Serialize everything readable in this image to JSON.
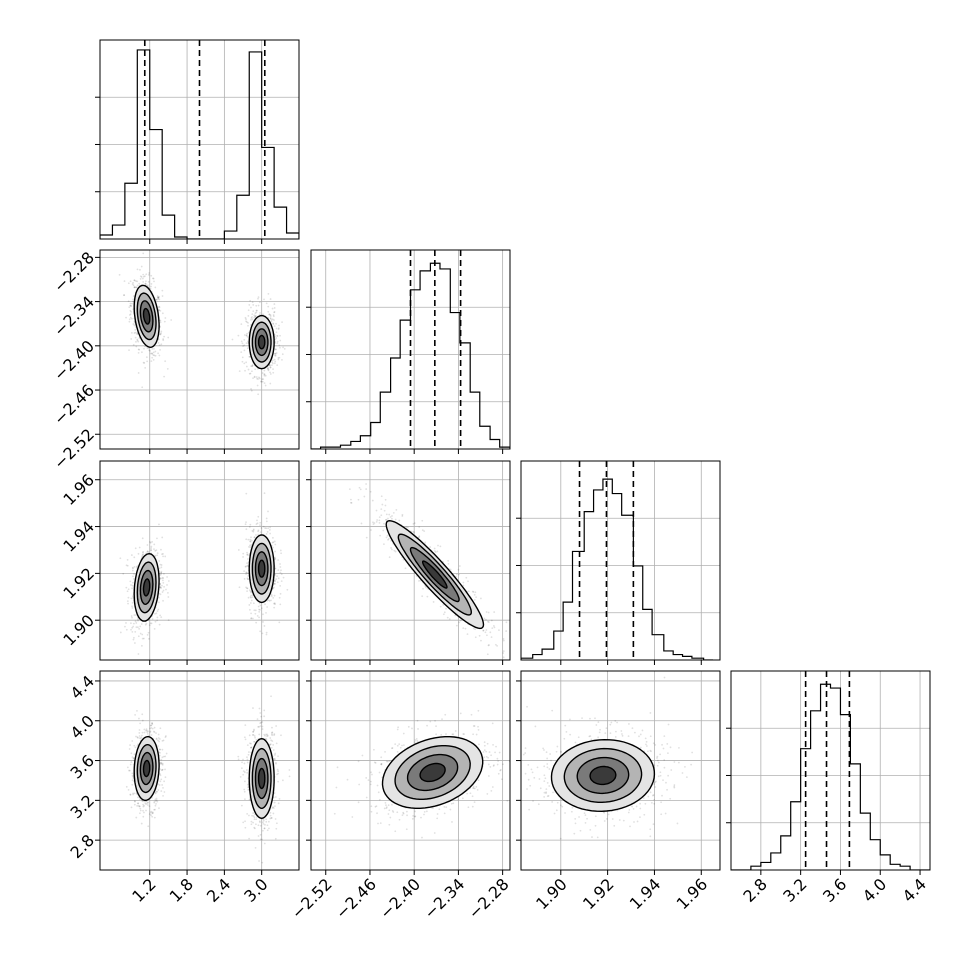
{
  "chart_data": {
    "type": "corner",
    "n_params": 4,
    "params": [
      {
        "range": [
          0.4,
          3.6
        ],
        "ticks": [
          1.2,
          1.8,
          2.4,
          3.0
        ],
        "tick_labels": [
          "1.2",
          "1.8",
          "2.4",
          "3.0"
        ],
        "quantiles": [
          1.12,
          2.0,
          3.05
        ],
        "hist": {
          "edges": [
            0.4,
            0.6,
            0.8,
            1.0,
            1.2,
            1.4,
            1.6,
            1.8,
            2.0,
            2.2,
            2.4,
            2.6,
            2.8,
            3.0,
            3.2,
            3.4,
            3.6
          ],
          "counts": [
            0.02,
            0.07,
            0.28,
            0.95,
            0.55,
            0.12,
            0.01,
            0,
            0,
            0,
            0.04,
            0.22,
            0.94,
            0.46,
            0.16,
            0.03
          ],
          "ylim": [
            0,
            1.0
          ]
        }
      },
      {
        "range": [
          -2.54,
          -2.27
        ],
        "ticks": [
          -2.52,
          -2.46,
          -2.4,
          -2.34,
          -2.28
        ],
        "tick_labels": [
          "−2.52",
          "−2.46",
          "−2.40",
          "−2.34",
          "−2.28"
        ],
        "quantiles": [
          -2.405,
          -2.372,
          -2.337
        ],
        "hist": {
          "edges": [
            -2.54,
            -2.527,
            -2.513,
            -2.5,
            -2.486,
            -2.473,
            -2.459,
            -2.446,
            -2.432,
            -2.419,
            -2.405,
            -2.392,
            -2.378,
            -2.365,
            -2.351,
            -2.338,
            -2.324,
            -2.311,
            -2.297,
            -2.284,
            -2.27
          ],
          "counts": [
            0,
            0.01,
            0.01,
            0.02,
            0.04,
            0.07,
            0.14,
            0.3,
            0.48,
            0.68,
            0.84,
            0.94,
            0.98,
            0.95,
            0.72,
            0.56,
            0.3,
            0.12,
            0.05,
            0.01
          ],
          "ylim": [
            0,
            1.05
          ]
        }
      },
      {
        "range": [
          1.883,
          1.968
        ],
        "ticks": [
          1.9,
          1.92,
          1.94,
          1.96
        ],
        "tick_labels": [
          "1.90",
          "1.92",
          "1.94",
          "1.96"
        ],
        "quantiles": [
          1.908,
          1.9195,
          1.931
        ],
        "hist": {
          "edges": [
            1.883,
            1.888,
            1.892,
            1.897,
            1.901,
            1.905,
            1.91,
            1.914,
            1.918,
            1.922,
            1.926,
            1.931,
            1.935,
            1.939,
            1.944,
            1.948,
            1.952,
            1.956,
            1.961,
            1.965
          ],
          "counts": [
            0.01,
            0.03,
            0.06,
            0.16,
            0.32,
            0.6,
            0.82,
            0.94,
            1.0,
            0.92,
            0.8,
            0.52,
            0.28,
            0.14,
            0.05,
            0.03,
            0.02,
            0.01,
            0
          ],
          "ylim": [
            0,
            1.1
          ]
        }
      },
      {
        "range": [
          2.5,
          4.5
        ],
        "ticks": [
          2.8,
          3.2,
          3.6,
          4.0,
          4.4
        ],
        "tick_labels": [
          "2.8",
          "3.2",
          "3.6",
          "4.0",
          "4.4"
        ],
        "quantiles": [
          3.25,
          3.46,
          3.69
        ],
        "hist": {
          "edges": [
            2.5,
            2.6,
            2.7,
            2.8,
            2.9,
            3.0,
            3.1,
            3.2,
            3.3,
            3.4,
            3.5,
            3.6,
            3.7,
            3.8,
            3.9,
            4.0,
            4.1,
            4.2,
            4.3,
            4.4,
            4.5
          ],
          "counts": [
            0,
            0,
            0.02,
            0.04,
            0.09,
            0.18,
            0.36,
            0.64,
            0.84,
            0.98,
            0.96,
            0.82,
            0.56,
            0.3,
            0.16,
            0.08,
            0.03,
            0.02,
            0,
            0
          ],
          "ylim": [
            0,
            1.05
          ]
        }
      }
    ],
    "joint": [
      {
        "row": 1,
        "col": 0,
        "modes": [
          {
            "mean": [
              1.15,
              -2.36
            ],
            "sd": [
              0.1,
              0.021
            ],
            "rho": -0.3
          },
          {
            "mean": [
              3.0,
              -2.395
            ],
            "sd": [
              0.1,
              0.018
            ],
            "rho": 0.0
          }
        ]
      },
      {
        "row": 2,
        "col": 0,
        "modes": [
          {
            "mean": [
              1.15,
              1.914
            ],
            "sd": [
              0.1,
              0.0072
            ],
            "rho": 0.2
          },
          {
            "mean": [
              3.0,
              1.922
            ],
            "sd": [
              0.1,
              0.0072
            ],
            "rho": 0.0
          }
        ]
      },
      {
        "row": 2,
        "col": 1,
        "modes": [
          {
            "mean": [
              -2.372,
              1.9195
            ],
            "sd": [
              0.033,
              0.0115
            ],
            "rho": -0.93
          }
        ]
      },
      {
        "row": 3,
        "col": 0,
        "modes": [
          {
            "mean": [
              1.15,
              3.52
            ],
            "sd": [
              0.1,
              0.16
            ],
            "rho": 0.1
          },
          {
            "mean": [
              3.0,
              3.42
            ],
            "sd": [
              0.1,
              0.2
            ],
            "rho": 0.0
          }
        ]
      },
      {
        "row": 3,
        "col": 1,
        "modes": [
          {
            "mean": [
              -2.375,
              3.48
            ],
            "sd": [
              0.034,
              0.18
            ],
            "rho": 0.3
          }
        ]
      },
      {
        "row": 3,
        "col": 2,
        "modes": [
          {
            "mean": [
              1.918,
              3.45
            ],
            "sd": [
              0.011,
              0.18
            ],
            "rho": 0.05
          }
        ]
      }
    ],
    "contour_levels_sigma": [
      0.5,
      1.0,
      1.5,
      2.0
    ],
    "contour_fill_colors": [
      "#3a3a3a",
      "#7a7a7a",
      "#b4b4b4",
      "#e4e4e4"
    ],
    "title": "",
    "legend": "none",
    "grid": true
  }
}
